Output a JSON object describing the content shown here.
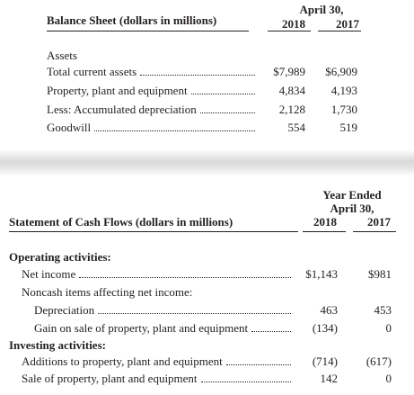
{
  "balance_sheet": {
    "period": "April 30,",
    "years": [
      "2018",
      "2017"
    ],
    "title": "Balance Sheet (dollars in millions)",
    "section": "Assets",
    "rows": [
      {
        "label": "Total current assets",
        "values": [
          "$7,989",
          "$6,909"
        ]
      },
      {
        "label": "Property, plant and equipment",
        "values": [
          "4,834",
          "4,193"
        ]
      },
      {
        "label": "Less: Accumulated depreciation",
        "values": [
          "2,128",
          "1,730"
        ]
      },
      {
        "label": "Goodwill",
        "values": [
          "554",
          "519"
        ]
      }
    ]
  },
  "cash_flows": {
    "period": [
      "Year Ended",
      "April 30,"
    ],
    "years": [
      "2018",
      "2017"
    ],
    "title": "Statement of Cash Flows (dollars in millions)",
    "rows": [
      {
        "label": "Operating activities:"
      },
      {
        "label": "Net income",
        "values": [
          "$1,143",
          "$981"
        ]
      },
      {
        "label": "Noncash items affecting net income:"
      },
      {
        "label": "Depreciation",
        "values": [
          "463",
          "453"
        ]
      },
      {
        "label": "Gain on sale of property, plant and equipment",
        "values": [
          "(134)",
          "0"
        ]
      },
      {
        "label": "Investing activities:"
      },
      {
        "label": "Additions to property, plant and equipment",
        "values": [
          "(714)",
          "(617)"
        ]
      },
      {
        "label": "Sale of property, plant and equipment",
        "values": [
          "142",
          "0"
        ]
      }
    ]
  }
}
